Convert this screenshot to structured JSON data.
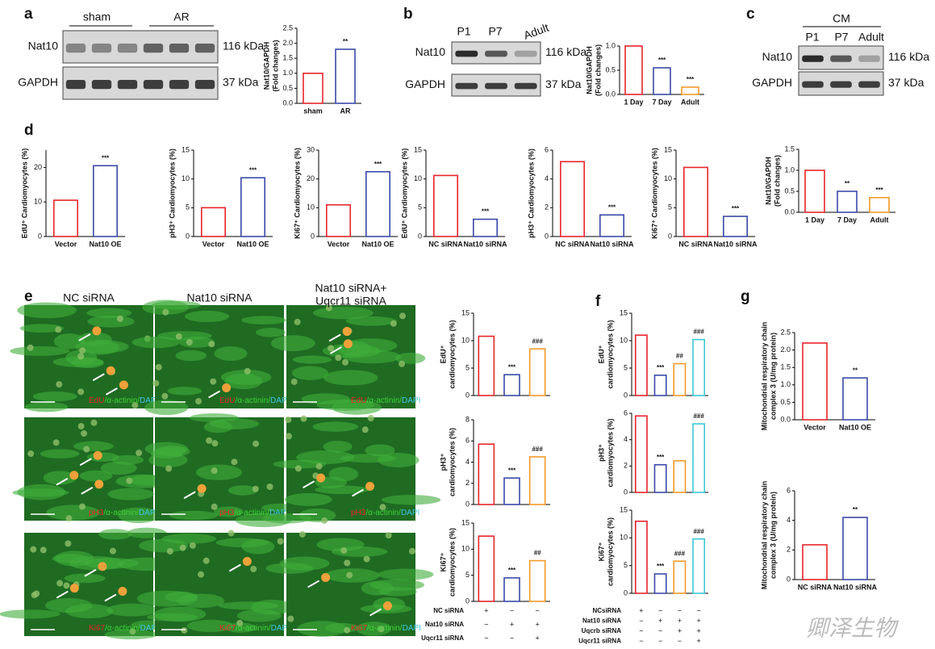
{
  "panel_labels": [
    "a",
    "b",
    "c",
    "d",
    "e",
    "f",
    "g"
  ],
  "blots": [
    {
      "headers": [
        "sham",
        "AR"
      ],
      "bands": [
        "Nat10",
        "GAPDH"
      ],
      "sizes": [
        "116 kDa",
        "37 kDa"
      ]
    },
    {
      "headers": [
        "P1",
        "P7",
        "Adult"
      ],
      "bands": [
        "Nat10",
        "GAPDH"
      ],
      "sizes": [
        "116 kDa",
        "37 kDa"
      ]
    },
    {
      "group": "CM",
      "headers": [
        "P1",
        "P7",
        "Adult"
      ],
      "bands": [
        "Nat10",
        "GAPDH"
      ],
      "sizes": [
        "116 kDa",
        "37 kDa"
      ]
    }
  ],
  "images": {
    "column_headers": [
      "NC siRNA",
      "Nat10 siRNA",
      "Nat10 siRNA+",
      "Uqcr11 siRNA"
    ],
    "captions": [
      [
        "EdU",
        "/α-actinin/",
        "DAPI"
      ],
      [
        "pH3",
        "/α-actinin/",
        "DAPI"
      ],
      [
        "Ki67",
        "/α-actinin/",
        "DAPI"
      ]
    ]
  },
  "charts": [
    {
      "type": "bar",
      "ylabel": [
        "Nat10/GAPDH",
        "(Fold changes)"
      ],
      "categories": [
        "sham",
        "AR"
      ],
      "values": [
        1.0,
        1.8
      ],
      "colors": [
        "#e8262b",
        "#3b4aa8"
      ],
      "ylim": [
        0,
        2.5
      ],
      "yticks": [
        {
          "value": 0,
          "label": "0.0"
        },
        {
          "value": 0.5,
          "label": "0.5"
        },
        {
          "value": 1,
          "label": "1.0"
        },
        {
          "value": 1.5,
          "label": "1.5"
        },
        {
          "value": 2,
          "label": "2.0"
        },
        {
          "value": 2.5,
          "label": "2.5"
        }
      ],
      "sig": [
        null,
        "**"
      ]
    },
    {
      "type": "bar",
      "ylabel": [
        "Nat10/GAPDH",
        "(Fold changes)"
      ],
      "categories": [
        "1 Day",
        "7 Day",
        "Adult"
      ],
      "values": [
        1.0,
        0.55,
        0.15
      ],
      "colors": [
        "#e8262b",
        "#3b4aa8",
        "#f39a2b"
      ],
      "ylim": [
        0,
        1
      ],
      "yticks": [
        {
          "value": 0,
          "label": "0.0"
        },
        0.5,
        {
          "value": 1,
          "label": "1.0"
        }
      ],
      "sig": [
        null,
        "***",
        "***"
      ]
    },
    {
      "type": "bar",
      "ylabel": [
        "Nat10/GAPDH",
        "(Fold changes)"
      ],
      "categories": [
        "1 Day",
        "7 Day",
        "Adult"
      ],
      "values": [
        1.0,
        0.5,
        0.35
      ],
      "colors": [
        "#e8262b",
        "#3b4aa8",
        "#f39a2b"
      ],
      "ylim": [
        0,
        1.5
      ],
      "yticks": [
        {
          "value": 0,
          "label": "0.0"
        },
        0.5,
        {
          "value": 1,
          "label": "1.0"
        },
        1.5
      ],
      "sig": [
        null,
        "**",
        "***"
      ]
    },
    {
      "type": "bar",
      "ylabel": [
        "EdU⁺ Cardiomyocytes (%)"
      ],
      "categories": [
        "Vector",
        "Nat10 OE"
      ],
      "values": [
        10.5,
        20.5
      ],
      "colors": [
        "#e8262b",
        "#3b4aa8"
      ],
      "ylim": [
        0,
        25
      ],
      "yticks": [
        0,
        10,
        20
      ],
      "sig": [
        null,
        "***"
      ]
    },
    {
      "type": "bar",
      "ylabel": [
        "pH3⁺ Cardiomyocytes (%)"
      ],
      "categories": [
        "Vector",
        "Nat10 OE"
      ],
      "values": [
        5.0,
        10.2
      ],
      "colors": [
        "#e8262b",
        "#3b4aa8"
      ],
      "ylim": [
        0,
        15
      ],
      "yticks": [
        0,
        5,
        10,
        15
      ],
      "sig": [
        null,
        "***"
      ]
    },
    {
      "type": "bar",
      "ylabel": [
        "Ki67⁺ Cardiomyocytes (%)"
      ],
      "categories": [
        "Vector",
        "Nat10 OE"
      ],
      "values": [
        11,
        22.5
      ],
      "colors": [
        "#e8262b",
        "#3b4aa8"
      ],
      "ylim": [
        0,
        30
      ],
      "yticks": [
        0,
        10,
        20,
        30
      ],
      "sig": [
        null,
        "***"
      ]
    },
    {
      "type": "bar",
      "ylabel": [
        "EdU⁺ Cardiomyocytes (%)"
      ],
      "categories": [
        "NC siRNA",
        "Nat10 siRNA"
      ],
      "values": [
        10.6,
        3.0
      ],
      "colors": [
        "#e8262b",
        "#3b4aa8"
      ],
      "ylim": [
        0,
        15
      ],
      "yticks": [
        0,
        5,
        10,
        15
      ],
      "sig": [
        null,
        "***"
      ]
    },
    {
      "type": "bar",
      "ylabel": [
        "pH3⁺ Cardiomyocytes (%)"
      ],
      "categories": [
        "NC siRNA",
        "Nat10 siRNA"
      ],
      "values": [
        5.2,
        1.5
      ],
      "colors": [
        "#e8262b",
        "#3b4aa8"
      ],
      "ylim": [
        0,
        6
      ],
      "yticks": [
        0,
        2,
        4,
        6
      ],
      "sig": [
        null,
        "***"
      ]
    },
    {
      "type": "bar",
      "ylabel": [
        "Ki67⁺ Cardiomyocytes (%)"
      ],
      "categories": [
        "NC siRNA",
        "Nat10 siRNA"
      ],
      "values": [
        12,
        3.5
      ],
      "colors": [
        "#e8262b",
        "#3b4aa8"
      ],
      "ylim": [
        0,
        15
      ],
      "yticks": [
        0,
        5,
        10,
        15
      ],
      "sig": [
        null,
        "***"
      ]
    },
    {
      "type": "bar",
      "ylabel": [
        "EdU⁺",
        "cardiomyocytes (%)"
      ],
      "values": [
        10.8,
        3.8,
        8.5
      ],
      "colors": [
        "#e8262b",
        "#3b4aa8",
        "#f39a2b"
      ],
      "ylim": [
        0,
        15
      ],
      "yticks": [
        0,
        5,
        10,
        15
      ],
      "sig": [
        null,
        "***",
        "###"
      ]
    },
    {
      "type": "bar",
      "ylabel": [
        "pH3⁺",
        "cardiomyocytes (%)"
      ],
      "values": [
        5.7,
        2.5,
        4.5
      ],
      "colors": [
        "#e8262b",
        "#3b4aa8",
        "#f39a2b"
      ],
      "ylim": [
        0,
        8
      ],
      "yticks": [
        0,
        2,
        4,
        6,
        8
      ],
      "sig": [
        null,
        "***",
        "###"
      ]
    },
    {
      "type": "bar",
      "ylabel": [
        "Ki67⁺",
        "cardiomyocytes (%)"
      ],
      "values": [
        12.5,
        4.5,
        7.8
      ],
      "colors": [
        "#e8262b",
        "#3b4aa8",
        "#f39a2b"
      ],
      "ylim": [
        0,
        15
      ],
      "yticks": [
        0,
        5,
        10,
        15
      ],
      "sig": [
        null,
        "***",
        "##"
      ]
    },
    {
      "type": "bar",
      "ylabel": [
        "EdU⁺",
        "cardiomyocytes (%)"
      ],
      "values": [
        11,
        3.7,
        5.8,
        10.2
      ],
      "colors": [
        "#e8262b",
        "#3b4aa8",
        "#f39a2b",
        "#3cc7d6"
      ],
      "ylim": [
        0,
        15
      ],
      "yticks": [
        0,
        5,
        10,
        15
      ],
      "sig": [
        null,
        "***",
        "##",
        "###"
      ]
    },
    {
      "type": "bar",
      "ylabel": [
        "pH3⁺",
        "cardiomyocytes (%)"
      ],
      "values": [
        5.8,
        2.1,
        2.4,
        5.2
      ],
      "colors": [
        "#e8262b",
        "#3b4aa8",
        "#f39a2b",
        "#3cc7d6"
      ],
      "ylim": [
        0,
        6
      ],
      "yticks": [
        0,
        2,
        4,
        6
      ],
      "sig": [
        null,
        "***",
        null,
        "###"
      ]
    },
    {
      "type": "bar",
      "ylabel": [
        "Ki67⁺",
        "cardiomyocytes (%)"
      ],
      "values": [
        13,
        3.5,
        5.8,
        9.8
      ],
      "colors": [
        "#e8262b",
        "#3b4aa8",
        "#f39a2b",
        "#3cc7d6"
      ],
      "ylim": [
        0,
        15
      ],
      "yticks": [
        0,
        5,
        10,
        15
      ],
      "sig": [
        null,
        "***",
        "###",
        "###"
      ]
    },
    {
      "type": "bar",
      "ylabel": [
        "Mitochondrial respiratory chain",
        "complex 3 (U/mg protein)"
      ],
      "categories": [
        "Vector",
        "Nat10 OE"
      ],
      "values": [
        2.2,
        1.2
      ],
      "colors": [
        "#e8262b",
        "#3b4aa8"
      ],
      "ylim": [
        0,
        2.5
      ],
      "yticks": [
        {
          "value": 0,
          "label": "0.0"
        },
        0.5,
        {
          "value": 1,
          "label": "1.0"
        },
        1.5,
        {
          "value": 2,
          "label": "2.0"
        },
        2.5
      ],
      "sig": [
        null,
        "**"
      ]
    },
    {
      "type": "bar",
      "ylabel": [
        "Mitochondrial respiratory chain",
        "complex 3 (U/mg protein)"
      ],
      "categories": [
        "NC siRNA",
        "Nat10 siRNA"
      ],
      "values": [
        2.35,
        4.2
      ],
      "colors": [
        "#e8262b",
        "#3b4aa8"
      ],
      "ylim": [
        0,
        6
      ],
      "yticks": [
        0,
        2,
        4,
        6
      ],
      "sig": [
        null,
        "**"
      ]
    }
  ],
  "tables": [
    {
      "rows": [
        {
          "label": "NC siRNA",
          "marks": [
            "+",
            "−",
            "−"
          ]
        },
        {
          "label": "Nat10 siRNA",
          "marks": [
            "−",
            "+",
            "+"
          ]
        },
        {
          "label": "Uqcr11 siRNA",
          "marks": [
            "−",
            "−",
            "+"
          ]
        }
      ]
    },
    {
      "rows": [
        {
          "label": "NCsiRNA",
          "marks": [
            "+",
            "−",
            "−",
            "−"
          ]
        },
        {
          "label": "Nat10 siRNA",
          "marks": [
            "−",
            "+",
            "+",
            "+"
          ]
        },
        {
          "label": "Uqcrb siRNA",
          "marks": [
            "−",
            "−",
            "+",
            "+"
          ]
        },
        {
          "label": "Uqcr11 siRNA",
          "marks": [
            "−",
            "−",
            "−",
            "+"
          ]
        }
      ]
    }
  ],
  "watermark": "卿泽生物"
}
